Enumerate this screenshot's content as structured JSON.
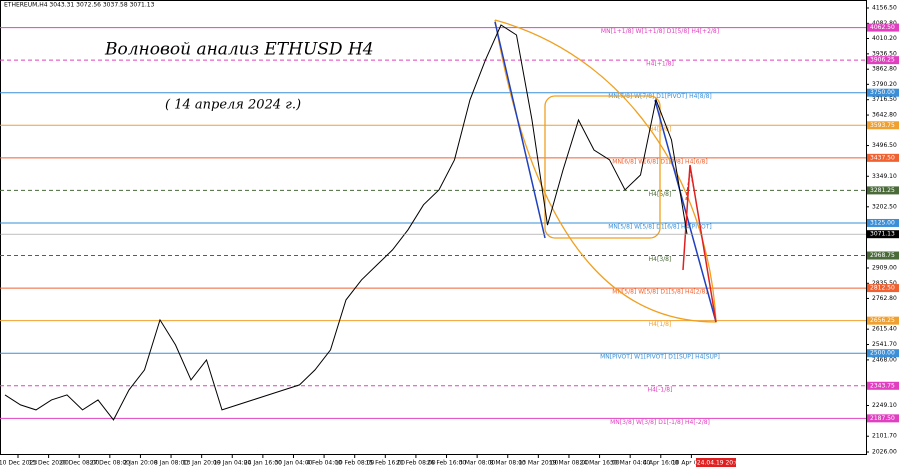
{
  "chart_data": {
    "type": "line",
    "symbol_info": "ETHEREUM,H4  3043.31 3072.56 3037.58 3071.13",
    "title": "Волновой анализ ETHUSD H4",
    "subtitle": "( 14 апреля 2024 г.)",
    "series": [
      {
        "color": "#000000",
        "values": [
          2300,
          2252,
          2228,
          2276,
          2300,
          2228,
          2276,
          2180,
          2324,
          2420,
          2660,
          2540,
          2372,
          2468,
          2228,
          2252,
          2276,
          2300,
          2324,
          2348,
          2420,
          2516,
          2756,
          2852,
          2924,
          2996,
          3092,
          3212,
          3284,
          3428,
          3716,
          3908,
          4075,
          4027,
          3619,
          3115,
          3379,
          3619,
          3475,
          3428,
          3284,
          3355,
          3716,
          3523,
          3072
        ]
      }
    ],
    "x_labels": [
      "10 Dec 2023",
      "15 Dec 20:00",
      "20 Dec 08:00",
      "27 Dec 08:00",
      "2 Jan 20:00",
      "8 Jan 08:00",
      "13 Jan 20:00",
      "19 Jan 04:00",
      "24 Jan 16:00",
      "30 Jan 04:00",
      "4 Feb 04:00",
      "10 Feb 08:00",
      "15 Feb 16:00",
      "21 Feb 08:00",
      "26 Feb 16:00",
      "3 Mar 08:00",
      "8 Mar 08:00",
      "13 Mar 20:00",
      "19 Mar 08:00",
      "24 Mar 16:00",
      "30 Mar 04:00",
      "4 Apr 16:00",
      "10 Apr 04:00"
    ],
    "forecast_time": "2024.04.19 20:00",
    "ylim": [
      2026.0,
      4156.5
    ],
    "yticks": [
      {
        "value": 4156.5,
        "label": "4156.50"
      },
      {
        "value": 4082.8,
        "label": "4082.80"
      },
      {
        "value": 4010.2,
        "label": "4010.20"
      },
      {
        "value": 3936.5,
        "label": "3936.50"
      },
      {
        "value": 3862.8,
        "label": "3862.80"
      },
      {
        "value": 3790.2,
        "label": "3790.20"
      },
      {
        "value": 3716.5,
        "label": "3716.50"
      },
      {
        "value": 3642.8,
        "label": "3642.80"
      },
      {
        "value": 3496.5,
        "label": "3496.50"
      },
      {
        "value": 3349.1,
        "label": "3349.10"
      },
      {
        "value": 3202.5,
        "label": "3202.50"
      },
      {
        "value": 2909.0,
        "label": "2909.00"
      },
      {
        "value": 2835.5,
        "label": "2835.50"
      },
      {
        "value": 2762.8,
        "label": "2762.80"
      },
      {
        "value": 2615.4,
        "label": "2615.40"
      },
      {
        "value": 2541.7,
        "label": "2541.70"
      },
      {
        "value": 2468.0,
        "label": "2468.00"
      },
      {
        "value": 2249.1,
        "label": "2249.10"
      },
      {
        "value": 2101.7,
        "label": "2101.70"
      },
      {
        "value": 2026.0,
        "label": "2026.00"
      }
    ],
    "levels": [
      {
        "name": "MN[1+1/8] W[1+1/8] D1[5/8] H4[+2/8]",
        "price": 4062.5,
        "price_label": "4062.50",
        "color": "#e040c0",
        "dashed": false
      },
      {
        "name": "H4[+1/8]",
        "price": 3906.25,
        "price_label": "3906.25",
        "color": "#e040c0",
        "dashed": true
      },
      {
        "name": "MN[7/8] W[7/8] D1[PIVOT] H4[8/8]",
        "price": 3750.0,
        "price_label": "3750.00",
        "color": "#3a8fd8",
        "dashed": false
      },
      {
        "name": "H4[7/8]",
        "price": 3593.75,
        "price_label": "3593.75",
        "color": "#f0a030",
        "dashed": false
      },
      {
        "name": "MN[6/8] W[6/8] D1[7/8] H4[6/8]",
        "price": 3437.5,
        "price_label": "3437.50",
        "color": "#f06030",
        "dashed": false
      },
      {
        "name": "H4[5/8]",
        "price": 3281.25,
        "price_label": "3281.25",
        "color": "#4a6a3a",
        "dashed": true
      },
      {
        "name": "MN[5/8] W[5/8] D1[6/8] H4[PIVOT]",
        "price": 3125.0,
        "price_label": "3125.00",
        "color": "#3a8fd8",
        "dashed": false
      },
      {
        "name": "H4[3/8]",
        "price": 2968.75,
        "price_label": "2968.75",
        "color": "#4a6a3a",
        "dashed": true
      },
      {
        "name": "MN[5/8] W[5/8] D1[5/8] H4[2/8]",
        "price": 2812.5,
        "price_label": "2812.50",
        "color": "#f06030",
        "dashed": false
      },
      {
        "name": "H4[1/8]",
        "price": 2656.25,
        "price_label": "2656.25",
        "color": "#f0a030",
        "dashed": false
      },
      {
        "name": "MN[PIVOT] W1[PIVOT] D1[SUP] H4[SUP]",
        "price": 2500.0,
        "price_label": "2500.00",
        "color": "#3a8fd8",
        "dashed": false
      },
      {
        "name": "H4[-1/8]",
        "price": 2343.75,
        "price_label": "2343.75",
        "color": "#e040c0",
        "dashed": true
      },
      {
        "name": "MN[3/8] W[3/8] D1[-1/8] H4[-2/8]",
        "price": 2187.5,
        "price_label": "2187.50",
        "color": "#e040c0",
        "dashed": false
      }
    ],
    "current_price": 3071.13,
    "current_price_label": "3071.13"
  }
}
